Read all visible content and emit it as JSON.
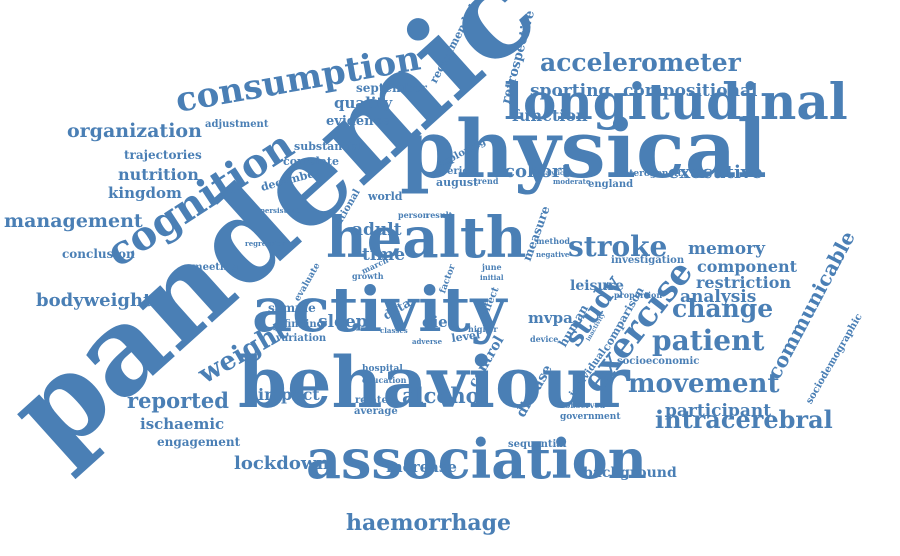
{
  "color": "#4a7fb5",
  "words": [
    {
      "text": "pandemic"
    },
    {
      "text": "physical"
    },
    {
      "text": "behaviour"
    },
    {
      "text": "activity"
    },
    {
      "text": "health"
    },
    {
      "text": "association"
    },
    {
      "text": "longitudinal"
    },
    {
      "text": "cognition"
    },
    {
      "text": "consumption"
    },
    {
      "text": "exercise"
    },
    {
      "text": "study"
    },
    {
      "text": "stroke"
    },
    {
      "text": "accelerometer"
    },
    {
      "text": "patient"
    },
    {
      "text": "movement"
    },
    {
      "text": "change"
    },
    {
      "text": "weight"
    },
    {
      "text": "intracerebral"
    },
    {
      "text": "haemorrhage"
    },
    {
      "text": "alcohol"
    },
    {
      "text": "reported"
    },
    {
      "text": "lockdown"
    },
    {
      "text": "organization"
    },
    {
      "text": "management"
    },
    {
      "text": "bodyweight"
    },
    {
      "text": "communicable"
    },
    {
      "text": "sporting"
    },
    {
      "text": "compositional"
    },
    {
      "text": "function"
    },
    {
      "text": "cohort"
    },
    {
      "text": "executive"
    },
    {
      "text": "memory"
    },
    {
      "text": "analysis"
    },
    {
      "text": "component"
    },
    {
      "text": "restriction"
    },
    {
      "text": "leisure"
    },
    {
      "text": "participant"
    },
    {
      "text": "impact"
    },
    {
      "text": "ischaemic"
    },
    {
      "text": "engagement"
    },
    {
      "text": "increase"
    },
    {
      "text": "background"
    },
    {
      "text": "nutrition"
    },
    {
      "text": "kingdom"
    },
    {
      "text": "quality"
    },
    {
      "text": "evidence"
    },
    {
      "text": "adult"
    },
    {
      "text": "time"
    },
    {
      "text": "sleep"
    },
    {
      "text": "diet"
    },
    {
      "text": "control"
    },
    {
      "text": "disease"
    },
    {
      "text": "mvpa"
    },
    {
      "text": "human"
    },
    {
      "text": "conclusion"
    },
    {
      "text": "september"
    },
    {
      "text": "recommended"
    },
    {
      "text": "retrospective"
    },
    {
      "text": "adjustment"
    },
    {
      "text": "trajectories"
    },
    {
      "text": "substantial"
    },
    {
      "text": "correlate"
    },
    {
      "text": "december"
    },
    {
      "text": "august"
    },
    {
      "text": "period"
    },
    {
      "text": "exploring"
    },
    {
      "text": "england"
    },
    {
      "text": "meeting"
    },
    {
      "text": "sample"
    },
    {
      "text": "finding"
    },
    {
      "text": "variation"
    },
    {
      "text": "related"
    },
    {
      "text": "level"
    },
    {
      "text": "data"
    },
    {
      "text": "world"
    },
    {
      "text": "national"
    },
    {
      "text": "sociodemographic"
    },
    {
      "text": "socioeconomic"
    },
    {
      "text": "sequential"
    },
    {
      "text": "comparison"
    },
    {
      "text": "individual"
    },
    {
      "text": "investigation"
    },
    {
      "text": "heterogeneity"
    },
    {
      "text": "measure"
    },
    {
      "text": "effect"
    },
    {
      "text": "factor"
    },
    {
      "text": "government"
    },
    {
      "text": "average"
    },
    {
      "text": "hospital"
    },
    {
      "text": "education"
    },
    {
      "text": "growth"
    },
    {
      "text": "person"
    },
    {
      "text": "proportion"
    },
    {
      "text": "observed"
    },
    {
      "text": "higher"
    },
    {
      "text": "device"
    },
    {
      "text": "march"
    },
    {
      "text": "persistent"
    },
    {
      "text": "regression"
    },
    {
      "text": "evaluate"
    },
    {
      "text": "method"
    },
    {
      "text": "classes"
    },
    {
      "text": "adverse"
    },
    {
      "text": "negative"
    },
    {
      "text": "trend"
    },
    {
      "text": "result"
    },
    {
      "text": "june"
    },
    {
      "text": "initial"
    },
    {
      "text": "moderate"
    },
    {
      "text": "analytical"
    },
    {
      "text": "inactivity"
    }
  ]
}
